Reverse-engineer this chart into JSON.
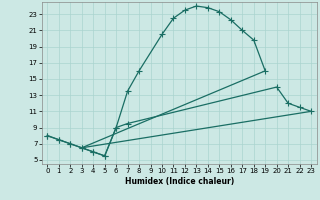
{
  "xlabel": "Humidex (Indice chaleur)",
  "bg_color": "#cce8e4",
  "grid_color": "#aad4cf",
  "line_color": "#1a6e64",
  "xlim": [
    -0.5,
    23.5
  ],
  "ylim": [
    4.5,
    24.5
  ],
  "xticks": [
    0,
    1,
    2,
    3,
    4,
    5,
    6,
    7,
    8,
    9,
    10,
    11,
    12,
    13,
    14,
    15,
    16,
    17,
    18,
    19,
    20,
    21,
    22,
    23
  ],
  "yticks": [
    5,
    7,
    9,
    11,
    13,
    15,
    17,
    19,
    21,
    23
  ],
  "curve1_x": [
    0,
    1,
    2,
    3,
    4,
    5,
    6,
    7,
    8,
    10,
    11,
    12,
    13,
    14,
    15,
    16,
    17,
    18,
    19
  ],
  "curve1_y": [
    8,
    7.5,
    7,
    6.5,
    6,
    5.5,
    9,
    13.5,
    16,
    20.5,
    22.5,
    23.5,
    24,
    23.8,
    23.3,
    22.3,
    21.0,
    19.8,
    16
  ],
  "curve2_x": [
    0,
    1,
    2,
    3,
    4,
    5,
    6,
    7,
    20,
    21,
    22,
    23
  ],
  "curve2_y": [
    8,
    7.5,
    7,
    6.5,
    6,
    5.5,
    9,
    9.5,
    14,
    12,
    11.5,
    11
  ],
  "line3_x": [
    3,
    23
  ],
  "line3_y": [
    6.5,
    11
  ],
  "line4_x": [
    3,
    19
  ],
  "line4_y": [
    6.5,
    16
  ]
}
